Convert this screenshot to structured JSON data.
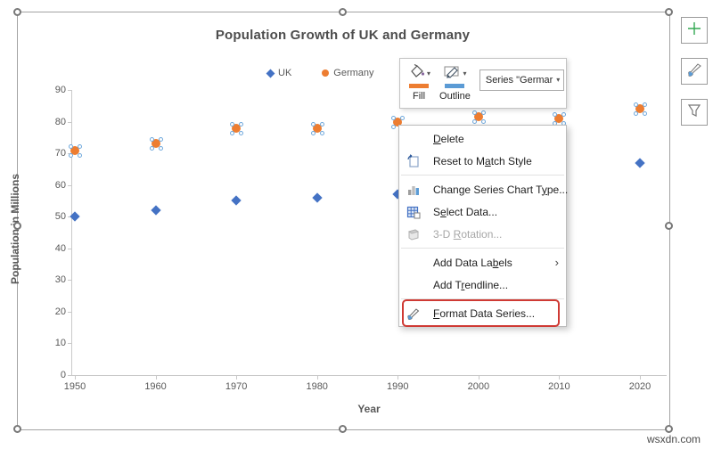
{
  "watermark": "wsxdn.com",
  "chart_data": {
    "type": "scatter",
    "title": "Population Growth of UK and Germany",
    "xlabel": "Year",
    "ylabel": "Population in Millions",
    "x": [
      1950,
      1960,
      1970,
      1980,
      1990,
      2000,
      2010,
      2020
    ],
    "series": [
      {
        "name": "UK",
        "marker": "diamond",
        "color": "#4472C4",
        "values": [
          50,
          52,
          55,
          56,
          57,
          null,
          null,
          67
        ]
      },
      {
        "name": "Germany",
        "marker": "circle",
        "color": "#ED7D31",
        "selected": true,
        "values": [
          71,
          73,
          78,
          78,
          80,
          81.5,
          81,
          84
        ]
      }
    ],
    "ylim": [
      0,
      90
    ],
    "ytick_step": 10,
    "grid": false,
    "legend_position": "top"
  },
  "mini_toolbar": {
    "fill_label": "Fill",
    "outline_label": "Outline",
    "fill_color": "#ED7D31",
    "outline_color": "#5B9BD5",
    "series_dropdown_value": "Series \"Germar"
  },
  "context_menu": {
    "items": [
      {
        "type": "item",
        "pre": "",
        "key": "D",
        "post": "elete",
        "icon": null
      },
      {
        "type": "item",
        "pre": "Reset to M",
        "key": "a",
        "post": "tch Style",
        "icon": "reset-style-icon"
      },
      {
        "type": "separator"
      },
      {
        "type": "item",
        "pre": "Change Series Chart T",
        "key": "y",
        "post": "pe...",
        "icon": "chart-type-icon"
      },
      {
        "type": "item",
        "pre": "S",
        "key": "e",
        "post": "lect Data...",
        "icon": "select-data-icon"
      },
      {
        "type": "item",
        "pre": "3-D ",
        "key": "R",
        "post": "otation...",
        "icon": "rotation-3d-icon",
        "enabled": false
      },
      {
        "type": "separator"
      },
      {
        "type": "item",
        "pre": "Add Data La",
        "key": "b",
        "post": "els",
        "icon": null,
        "submenu": true
      },
      {
        "type": "item",
        "pre": "Add T",
        "key": "r",
        "post": "endline...",
        "icon": null
      },
      {
        "type": "separator"
      },
      {
        "type": "item",
        "pre": "",
        "key": "F",
        "post": "ormat Data Series...",
        "icon": "format-series-icon",
        "highlighted": true
      }
    ]
  },
  "side_buttons": [
    {
      "name": "chart-elements-button",
      "icon": "plus-icon"
    },
    {
      "name": "chart-styles-button",
      "icon": "brush-icon"
    },
    {
      "name": "chart-filters-button",
      "icon": "funnel-icon"
    }
  ],
  "colors": {
    "uk_series": "#4472C4",
    "germany_series": "#ED7D31",
    "highlight_red": "#cf3a34",
    "axis_text": "#595959"
  }
}
